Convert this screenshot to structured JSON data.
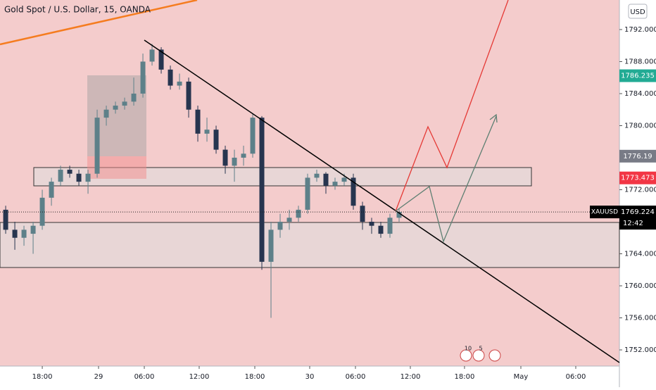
{
  "chart_data": {
    "type": "candlestick",
    "title": "Gold Spot / U.S. Dollar, 15, OANDA",
    "currency": "USD",
    "x": [
      -4,
      -3,
      -2,
      -1,
      0,
      1,
      2,
      3,
      4,
      5,
      6,
      7,
      8,
      9,
      10,
      11,
      12,
      13,
      14,
      15,
      16,
      17,
      18,
      19,
      20,
      21,
      22,
      23,
      24,
      25,
      26,
      27,
      28,
      29,
      30,
      31,
      32,
      33,
      34,
      35,
      36,
      37,
      38,
      39
    ],
    "open": [
      1769.5,
      1767,
      1766,
      1766.5,
      1767.5,
      1771,
      1773,
      1774.5,
      1774,
      1773,
      1774,
      1781,
      1782,
      1782.5,
      1783,
      1784,
      1788,
      1789.5,
      1787,
      1785,
      1785.5,
      1782,
      1779,
      1779.5,
      1777,
      1775,
      1776,
      1776.5,
      1781,
      1763,
      1767,
      1768,
      1768.5,
      1769.5,
      1773.5,
      1774,
      1772.5,
      1773,
      1773.5,
      1770,
      1768,
      1767.5,
      1766.5,
      1768.5
    ],
    "high": [
      1770,
      1768,
      1767.5,
      1768,
      1772,
      1773.5,
      1775,
      1775,
      1774.5,
      1774.5,
      1782,
      1782.5,
      1783,
      1783.5,
      1786,
      1789,
      1790.2,
      1789.8,
      1787.5,
      1786.5,
      1786,
      1782.5,
      1781,
      1780,
      1777.5,
      1777,
      1777.5,
      1781.5,
      1781.2,
      1768,
      1769,
      1769.5,
      1770,
      1774,
      1774.5,
      1774.2,
      1773.5,
      1774,
      1774,
      1770.5,
      1768.5,
      1768,
      1769,
      1769.6
    ],
    "low": [
      1766.5,
      1764.5,
      1765,
      1764,
      1767,
      1770,
      1772.5,
      1773.5,
      1772.5,
      1771.5,
      1773.5,
      1780,
      1781.5,
      1782,
      1782.5,
      1783.5,
      1787.5,
      1786.5,
      1784.5,
      1784.5,
      1781,
      1778,
      1778,
      1776.5,
      1774,
      1773,
      1775,
      1776,
      1762,
      1756,
      1766,
      1767,
      1768,
      1769,
      1773,
      1771.5,
      1772,
      1772.5,
      1769.5,
      1767,
      1766.5,
      1766,
      1766,
      1768
    ],
    "close": [
      1767,
      1766,
      1767,
      1767.5,
      1771,
      1773,
      1774.5,
      1774,
      1773,
      1774,
      1781,
      1782,
      1782.5,
      1783,
      1784,
      1788,
      1789.5,
      1787,
      1785,
      1785.5,
      1782,
      1779,
      1779.5,
      1777,
      1775,
      1776,
      1776.5,
      1781,
      1763,
      1767,
      1768,
      1768.5,
      1769.5,
      1773.5,
      1774,
      1772.5,
      1773,
      1773.5,
      1770,
      1768,
      1767.5,
      1766.5,
      1768.5,
      1769.224
    ],
    "up_color": "#5d8089",
    "down_color": "#27354f",
    "background": "#f4cccc",
    "xlim": [
      -4.62,
      63.08
    ],
    "xticks": [
      {
        "value": 0,
        "label": "18:00"
      },
      {
        "value": 6.15,
        "label": "29"
      },
      {
        "value": 11.15,
        "label": "06:00"
      },
      {
        "value": 17.15,
        "label": "12:00"
      },
      {
        "value": 23.23,
        "label": "18:00"
      },
      {
        "value": 29.23,
        "label": "30"
      },
      {
        "value": 34.23,
        "label": "06:00"
      },
      {
        "value": 40.23,
        "label": "12:00"
      },
      {
        "value": 46.15,
        "label": "18:00"
      },
      {
        "value": 52.31,
        "label": "May"
      },
      {
        "value": 58.31,
        "label": "06:00"
      }
    ],
    "ylim": [
      1749.98,
      1795.69
    ],
    "yticks": [
      {
        "value": 1752,
        "label": "1752.000"
      },
      {
        "value": 1756,
        "label": "1756.000"
      },
      {
        "value": 1760,
        "label": "1760.000"
      },
      {
        "value": 1764,
        "label": "1764.000"
      },
      {
        "value": 1768,
        "label": "1768.000"
      },
      {
        "value": 1772,
        "label": "1772.000"
      },
      {
        "value": 1776,
        "label": "1776.000"
      },
      {
        "value": 1780,
        "label": "1780.000"
      },
      {
        "value": 1784,
        "label": "1784.000"
      },
      {
        "value": 1788,
        "label": "1788.000"
      },
      {
        "value": 1792,
        "label": "1792.000"
      }
    ],
    "price_tags": [
      {
        "price": 1786.235,
        "color": "#22ab94"
      },
      {
        "price": 1776.19,
        "color": "#787b86"
      },
      {
        "price": 1773.473,
        "color": "#f23645"
      }
    ],
    "last_price": {
      "symbol": "XAUUSD",
      "price": 1769.224,
      "countdown": "12:42"
    },
    "events": [
      10,
      5
    ]
  }
}
